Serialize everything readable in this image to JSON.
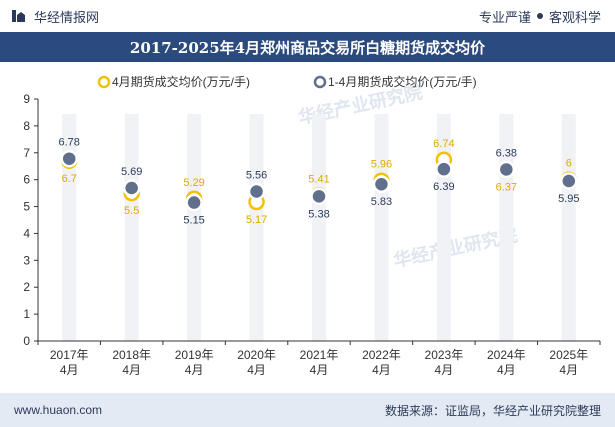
{
  "header": {
    "brand": "华经情报网",
    "tag1": "专业严谨",
    "tag2": "客观科学"
  },
  "chart_data": {
    "type": "line",
    "title": "2017-2025年4月郑州商品交易所白糖期货成交均价",
    "categories": [
      "2017年\n4月",
      "2018年\n4月",
      "2019年\n4月",
      "2020年\n4月",
      "2021年\n4月",
      "2022年\n4月",
      "2023年\n4月",
      "2024年\n4月",
      "2025年\n4月"
    ],
    "series": [
      {
        "name": "4月期货成交均价(万元/手)",
        "values": [
          6.7,
          5.5,
          5.29,
          5.17,
          5.41,
          5.96,
          6.74,
          6.37,
          6
        ],
        "labels": [
          "6.7",
          "5.5",
          "5.29",
          "5.17",
          "5.41",
          "5.96",
          "6.74",
          "6.37",
          "6"
        ],
        "color": "#f5c000"
      },
      {
        "name": "1-4月期货成交均价(万元/手)",
        "values": [
          6.78,
          5.69,
          5.15,
          5.56,
          5.38,
          5.83,
          6.39,
          6.38,
          5.95
        ],
        "labels": [
          "6.78",
          "5.69",
          "5.15",
          "5.56",
          "5.38",
          "5.83",
          "6.39",
          "6.38",
          "5.95"
        ],
        "color": "#5f6f8c"
      }
    ],
    "yticks": [
      "0",
      "1",
      "2",
      "3",
      "4",
      "5",
      "6",
      "7",
      "8",
      "9"
    ],
    "ylim": [
      0,
      9
    ],
    "grid": false,
    "legend": "top-center"
  },
  "watermark": "华经产业研究院",
  "footer": {
    "site": "www.huaon.com",
    "source": "数据来源：证监局，华经产业研究院整理"
  }
}
